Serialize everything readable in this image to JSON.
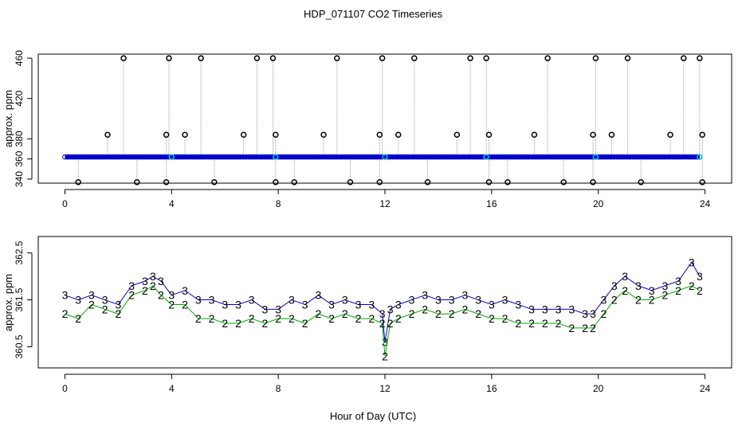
{
  "figure": {
    "title": "HDP_071107  CO2 Timeseries",
    "shared_xlabel": "Hour of Day (UTC)"
  },
  "colors": {
    "axis": "#000000",
    "raw_marker": "#000000",
    "raw_line": "#999999",
    "blue_marker": "#0000cc",
    "cyan_marker": "#00cccc",
    "series3": "#0000cc",
    "series2": "#00aa00"
  },
  "chart_data": [
    {
      "type": "scatter",
      "title": "HDP_071107  CO2 Timeseries",
      "ylabel": "approx. ppm",
      "xlim": [
        -1.0,
        25.0
      ],
      "ylim": [
        336.0,
        464.0
      ],
      "xticks": [
        0,
        4,
        8,
        12,
        16,
        20,
        24
      ],
      "yticks": [
        340,
        360,
        380,
        420,
        460
      ],
      "baseline": 362,
      "baseline_x_range": [
        0.0,
        23.8
      ],
      "high_spikes": [
        2.2,
        3.9,
        5.1,
        7.2,
        7.8,
        10.2,
        11.9,
        13.1,
        15.2,
        15.8,
        18.1,
        19.9,
        21.1,
        23.2,
        23.8
      ],
      "mid_spikes": [
        1.6,
        3.8,
        4.5,
        6.7,
        7.9,
        9.7,
        11.8,
        12.5,
        14.7,
        15.9,
        17.6,
        19.8,
        20.5,
        22.7,
        23.9
      ],
      "low_spikes": [
        0.5,
        2.7,
        3.8,
        5.6,
        7.9,
        8.6,
        10.7,
        11.8,
        13.6,
        15.9,
        16.6,
        18.7,
        19.8,
        21.6,
        23.9
      ],
      "high_value": 460,
      "mid_value": 384,
      "low_value": 337,
      "cyan_points": [
        4.0,
        7.9,
        12.0,
        15.8,
        19.9,
        23.8
      ]
    },
    {
      "type": "scatter",
      "ylabel": "approx. ppm",
      "xlabel": "Hour of Day (UTC)",
      "xlim": [
        -1.0,
        25.0
      ],
      "ylim": [
        360.05,
        362.85
      ],
      "xticks": [
        0,
        4,
        8,
        12,
        16,
        20,
        24
      ],
      "yticks": [
        360.5,
        361.5,
        362.5
      ],
      "series": [
        {
          "name": "3",
          "symbol": "3",
          "x": [
            0.0,
            0.5,
            1.0,
            1.5,
            2.0,
            2.5,
            3.0,
            3.3,
            3.6,
            4.0,
            4.5,
            5.0,
            5.5,
            6.0,
            6.5,
            7.0,
            7.5,
            8.0,
            8.5,
            9.0,
            9.5,
            10.0,
            10.5,
            11.0,
            11.5,
            11.9,
            12.0,
            12.2,
            12.5,
            13.0,
            13.5,
            14.0,
            14.5,
            15.0,
            15.5,
            16.0,
            16.5,
            17.0,
            17.5,
            18.0,
            18.5,
            19.0,
            19.5,
            19.8,
            20.2,
            20.6,
            21.0,
            21.5,
            22.0,
            22.5,
            23.0,
            23.5,
            23.8
          ],
          "y": [
            361.6,
            361.5,
            361.6,
            361.5,
            361.4,
            361.8,
            361.9,
            362.0,
            361.9,
            361.6,
            361.7,
            361.5,
            361.5,
            361.4,
            361.4,
            361.5,
            361.3,
            361.3,
            361.5,
            361.4,
            361.6,
            361.4,
            361.5,
            361.4,
            361.4,
            361.2,
            360.6,
            361.3,
            361.4,
            361.5,
            361.6,
            361.5,
            361.5,
            361.6,
            361.5,
            361.4,
            361.5,
            361.4,
            361.3,
            361.3,
            361.3,
            361.3,
            361.2,
            361.2,
            361.5,
            361.8,
            362.0,
            361.8,
            361.7,
            361.8,
            361.9,
            362.3,
            362.0
          ]
        },
        {
          "name": "2",
          "symbol": "2",
          "x": [
            0.0,
            0.5,
            1.0,
            1.5,
            2.0,
            2.5,
            3.0,
            3.3,
            3.6,
            4.0,
            4.5,
            5.0,
            5.5,
            6.0,
            6.5,
            7.0,
            7.5,
            8.0,
            8.5,
            9.0,
            9.5,
            10.0,
            10.5,
            11.0,
            11.5,
            11.9,
            12.0,
            12.2,
            12.5,
            13.0,
            13.5,
            14.0,
            14.5,
            15.0,
            15.5,
            16.0,
            16.5,
            17.0,
            17.5,
            18.0,
            18.5,
            19.0,
            19.5,
            19.8,
            20.2,
            20.6,
            21.0,
            21.5,
            22.0,
            22.5,
            23.0,
            23.5,
            23.8
          ],
          "y": [
            361.2,
            361.1,
            361.4,
            361.3,
            361.2,
            361.6,
            361.7,
            361.8,
            361.6,
            361.4,
            361.4,
            361.1,
            361.1,
            361.0,
            361.0,
            361.1,
            361.0,
            361.1,
            361.1,
            361.0,
            361.2,
            361.1,
            361.2,
            361.1,
            361.1,
            361.0,
            360.3,
            361.0,
            361.1,
            361.2,
            361.3,
            361.2,
            361.2,
            361.3,
            361.2,
            361.1,
            361.1,
            361.0,
            361.0,
            361.0,
            361.0,
            360.9,
            360.9,
            360.9,
            361.2,
            361.5,
            361.7,
            361.5,
            361.5,
            361.6,
            361.7,
            361.8,
            361.7
          ]
        }
      ]
    }
  ]
}
